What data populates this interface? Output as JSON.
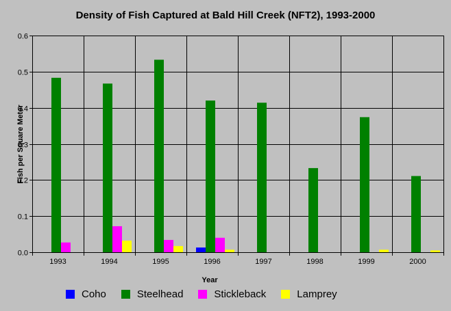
{
  "chart_data": {
    "type": "bar",
    "title": "Density of Fish Captured at Bald Hill Creek (NFT2), 1993-2000",
    "xlabel": "Year",
    "ylabel": "Fish per Square Meter",
    "ylim": [
      0,
      0.6
    ],
    "yticks": [
      "0.0",
      "0.1",
      "0.2",
      "0.3",
      "0.4",
      "0.5",
      "0.6"
    ],
    "grid": true,
    "legend_position": "bottom",
    "categories": [
      "1993",
      "1994",
      "1995",
      "1996",
      "1997",
      "1998",
      "1999",
      "2000"
    ],
    "series": [
      {
        "name": "Coho",
        "color": "#0000ff",
        "values": [
          0,
          0,
          0,
          0.013,
          0,
          0,
          0,
          0
        ]
      },
      {
        "name": "Steelhead",
        "color": "#008000",
        "values": [
          0.483,
          0.467,
          0.533,
          0.42,
          0.414,
          0.233,
          0.374,
          0.211
        ]
      },
      {
        "name": "Stickleback",
        "color": "#ff00ff",
        "values": [
          0.027,
          0.072,
          0.034,
          0.04,
          0,
          0,
          0,
          0
        ]
      },
      {
        "name": "Lamprey",
        "color": "#ffff00",
        "values": [
          0,
          0.032,
          0.017,
          0.007,
          0,
          0,
          0.007,
          0.005
        ]
      }
    ]
  }
}
